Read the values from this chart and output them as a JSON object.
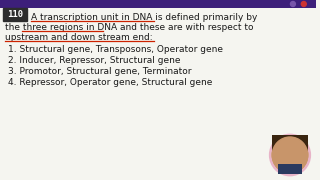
{
  "bg_color_top": "#2d1b5e",
  "bg_color_content": "#f5f5f0",
  "question_number": "110",
  "question_number_bg": "#2d2d2d",
  "question_number_color": "#ffffff",
  "title_line1": "A transcription unit in DNA is defined primarily by",
  "title_line2": "the three regions in DNA and these are with respect to",
  "title_line3": "upstream and down stream end:",
  "options": [
    "1. Structural gene, Transposons, Operator gene",
    "2. Inducer, Repressor, Structural gene",
    "3. Promotor, Structural gene, Terminator",
    "4. Repressor, Operator gene, Structural gene"
  ],
  "underline_color": "#cc2200",
  "text_color": "#1a1a1a",
  "purple_bar_color": "#3d1f7a",
  "purple_bar_height": 8,
  "dot_colors": [
    "#7755aa",
    "#cc3333"
  ],
  "person_circle_color": "#e8c4b0",
  "person_inner_color": "#c49070"
}
